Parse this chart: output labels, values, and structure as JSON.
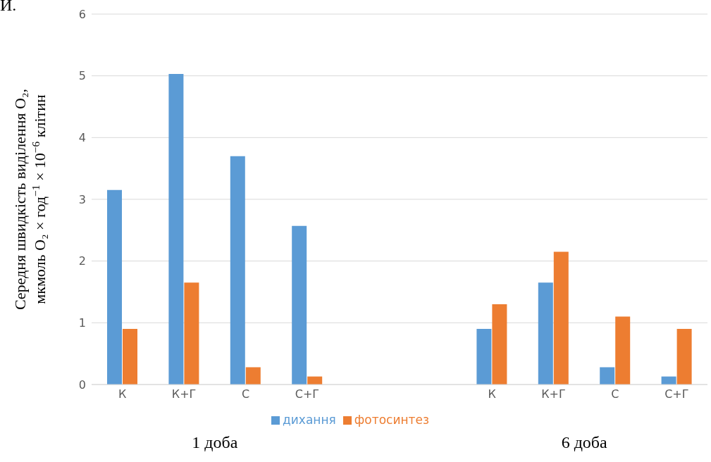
{
  "chart_data": {
    "type": "bar",
    "ylabel": "Середня швидкість виділення O₂, мкмоль O₂ × год$^{−1}$ × 10$^{−6}$ клітин",
    "categories": [
      "К",
      "К+Г",
      "С",
      "С+Г",
      null,
      null,
      "К",
      "К+Г",
      "С",
      "С+Г"
    ],
    "series": [
      {
        "name": "дихання",
        "color": "#5b9bd5",
        "values": [
          3.15,
          5.03,
          3.7,
          2.57,
          null,
          null,
          0.9,
          1.65,
          0.28,
          0.13
        ]
      },
      {
        "name": "фотосинтез",
        "color": "#ed7d31",
        "values": [
          0.9,
          1.65,
          0.28,
          0.13,
          null,
          null,
          1.3,
          2.15,
          1.1,
          0.9
        ]
      }
    ],
    "ylim": [
      0,
      6
    ],
    "yticks": [
      0,
      1,
      2,
      3,
      4,
      5,
      6
    ],
    "grid": "y",
    "legend": "bottom",
    "annotations": [
      "И.",
      "1 доба",
      "6 доба"
    ]
  }
}
